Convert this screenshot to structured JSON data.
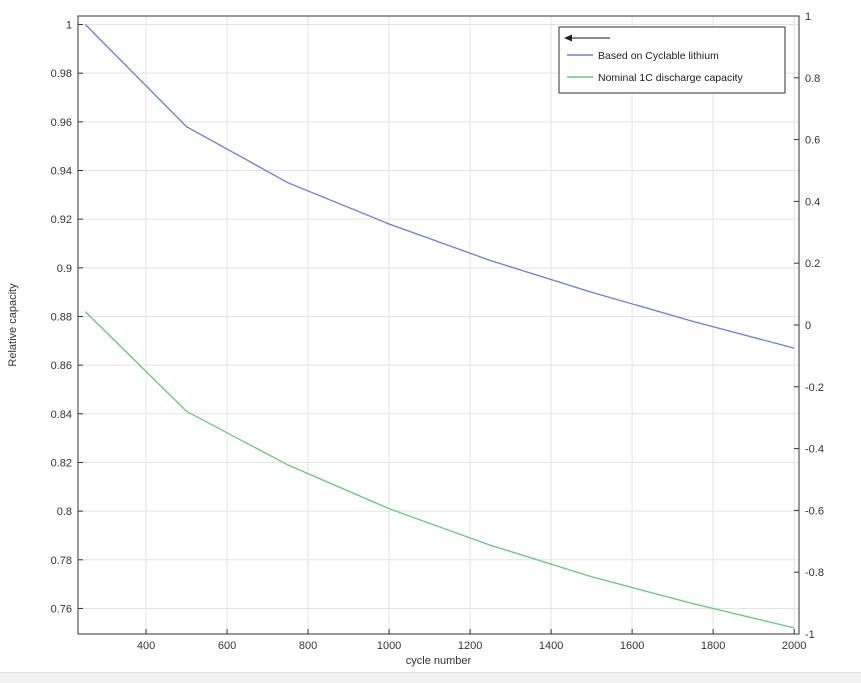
{
  "chart_data": {
    "type": "line",
    "title": "",
    "xlabel": "cycle number",
    "ylabel": "Relative capacity",
    "y2label": "",
    "xlim": [
      232,
      2012
    ],
    "ylim": [
      0.7495,
      1.0035
    ],
    "y2lim": [
      -1.0,
      1.0
    ],
    "x_ticks": [
      400,
      600,
      800,
      1000,
      1200,
      1400,
      1600,
      1800,
      2000
    ],
    "x_tick_labels": [
      "400",
      "600",
      "800",
      "1000",
      "1200",
      "1400",
      "1600",
      "1800",
      "2000"
    ],
    "y_ticks": [
      0.76,
      0.78,
      0.8,
      0.82,
      0.84,
      0.86,
      0.88,
      0.9,
      0.92,
      0.94,
      0.96,
      0.98,
      1
    ],
    "y_tick_labels": [
      "0.76",
      "0.78",
      "0.8",
      "0.82",
      "0.84",
      "0.86",
      "0.88",
      "0.9",
      "0.92",
      "0.94",
      "0.96",
      "0.98",
      "1"
    ],
    "y2_ticks": [
      -1,
      -0.8,
      -0.6,
      -0.4,
      -0.2,
      0,
      0.2,
      0.4,
      0.6,
      0.8,
      1
    ],
    "y2_tick_labels": [
      "-1",
      "-0.8",
      "-0.6",
      "-0.4",
      "-0.2",
      "0",
      "0.2",
      "0.4",
      "0.6",
      "0.8",
      "1"
    ],
    "grid": true,
    "legend_position": "top-right",
    "series": [
      {
        "name": "Based on Cyclable lithium",
        "color": "#6b7fd6",
        "x": [
          250,
          500,
          750,
          1000,
          1250,
          1500,
          1750,
          2000
        ],
        "y": [
          1.0,
          0.958,
          0.935,
          0.918,
          0.903,
          0.89,
          0.878,
          0.867
        ]
      },
      {
        "name": "Nominal 1C discharge capacity",
        "color": "#6cc47f",
        "x": [
          250,
          500,
          750,
          1000,
          1250,
          1500,
          1750,
          2000
        ],
        "y": [
          0.882,
          0.841,
          0.819,
          0.801,
          0.786,
          0.773,
          0.762,
          0.752
        ]
      }
    ]
  }
}
